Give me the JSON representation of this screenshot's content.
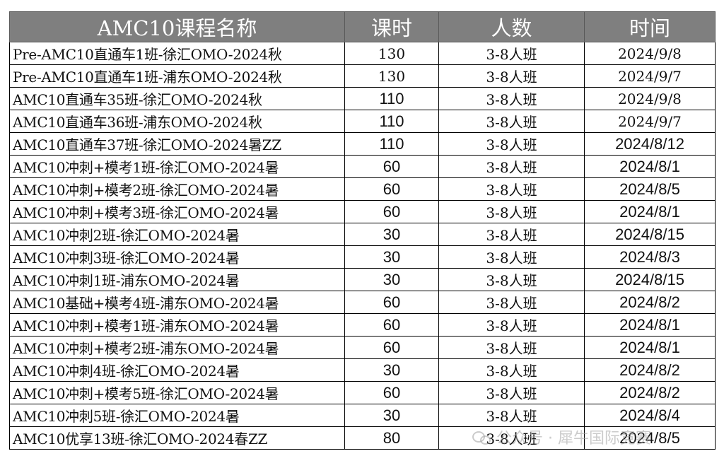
{
  "headers": [
    "AMC10课程名称",
    "课时",
    "人数",
    "时间"
  ],
  "rows": [
    {
      "name": "Pre-AMC10直通车1班-徐汇OMO-2024秋",
      "hours": "130",
      "size": "3-8人班",
      "date": "2024/9/8"
    },
    {
      "name": "Pre-AMC10直通车1班-浦东OMO-2024秋",
      "hours": "130",
      "size": "3-8人班",
      "date": "2024/9/7"
    },
    {
      "name": "AMC10直通车35班-徐汇OMO-2024秋",
      "hours": "110",
      "size": "3-8人班",
      "date": "2024/9/8"
    },
    {
      "name": "AMC10直通车36班-浦东OMO-2024秋",
      "hours": "110",
      "size": "3-8人班",
      "date": "2024/9/7"
    },
    {
      "name": "AMC10直通车37班-徐汇OMO-2024暑ZZ",
      "hours": "110",
      "size": "3-8人班",
      "date": "2024/8/12"
    },
    {
      "name": "AMC10冲刺+模考1班-徐汇OMO-2024暑",
      "hours": "60",
      "size": "3-8人班",
      "date": "2024/8/1"
    },
    {
      "name": "AMC10冲刺+模考2班-徐汇OMO-2024暑",
      "hours": "60",
      "size": "3-8人班",
      "date": "2024/8/5"
    },
    {
      "name": "AMC10冲刺+模考3班-徐汇OMO-2024暑",
      "hours": "60",
      "size": "3-8人班",
      "date": "2024/8/1"
    },
    {
      "name": "AMC10冲刺2班-徐汇OMO-2024暑",
      "hours": "30",
      "size": "3-8人班",
      "date": "2024/8/15"
    },
    {
      "name": "AMC10冲刺3班-徐汇OMO-2024暑",
      "hours": "30",
      "size": "3-8人班",
      "date": "2024/8/3"
    },
    {
      "name": "AMC10冲刺1班-浦东OMO-2024暑",
      "hours": "30",
      "size": "3-8人班",
      "date": "2024/8/15"
    },
    {
      "name": "AMC10基础+模考4班-浦东OMO-2024暑",
      "hours": "60",
      "size": "3-8人班",
      "date": "2024/8/2"
    },
    {
      "name": "AMC10冲刺+模考1班-浦东OMO-2024暑",
      "hours": "60",
      "size": "3-8人班",
      "date": "2024/8/1"
    },
    {
      "name": "AMC10冲刺+模考2班-浦东OMO-2024暑",
      "hours": "60",
      "size": "3-8人班",
      "date": "2024/8/1"
    },
    {
      "name": "AMC10冲刺4班-徐汇OMO-2024暑",
      "hours": "30",
      "size": "3-8人班",
      "date": "2024/8/2"
    },
    {
      "name": "AMC10冲刺+模考5班-徐汇OMO-2024暑",
      "hours": "60",
      "size": "3-8人班",
      "date": "2024/8/2"
    },
    {
      "name": "AMC10冲刺5班-徐汇OMO-2024暑",
      "hours": "30",
      "size": "3-8人班",
      "date": "2024/8/4"
    },
    {
      "name": "AMC10优享13班-徐汇OMO-2024春ZZ",
      "hours": "80",
      "size": "3-8人班",
      "date": "2024/8/5"
    }
  ],
  "watermark": "公众号 · 犀牛国际竞赛"
}
